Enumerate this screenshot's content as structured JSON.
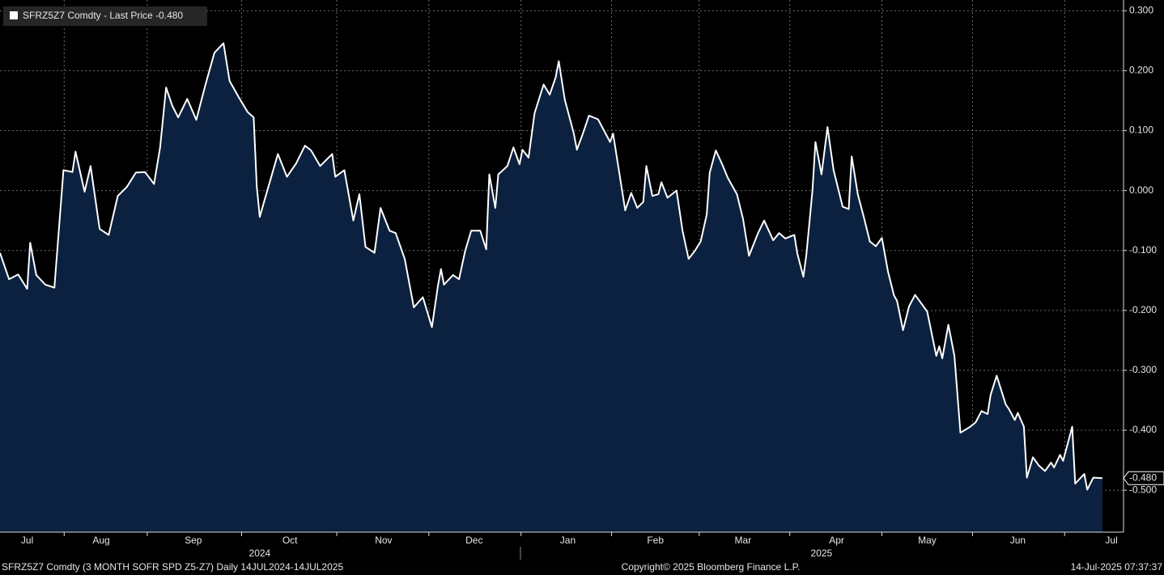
{
  "chart_data": {
    "type": "area",
    "series": [
      {
        "name": "SFRZ5Z7 Comdty - Last Price",
        "color": "#ffffff",
        "fill": "#0b213f",
        "x": [
          0,
          3,
          6,
          9,
          10,
          12,
          15,
          18,
          21,
          24,
          25,
          28,
          30,
          33,
          36,
          39,
          42,
          45,
          48,
          51,
          53,
          55,
          57,
          59,
          62,
          65,
          68,
          71,
          74,
          76,
          79,
          82,
          84,
          85,
          86,
          88,
          92,
          95,
          98,
          101,
          103,
          106,
          110,
          111,
          114,
          117,
          119,
          121,
          124,
          126,
          129,
          131,
          134,
          137,
          140,
          143,
          145,
          146,
          147,
          150,
          152,
          154,
          156,
          159,
          161,
          162,
          164,
          165,
          168,
          170,
          172,
          173,
          175,
          177,
          180,
          182,
          184,
          185,
          187,
          190,
          191,
          193,
          195,
          198,
          202,
          203,
          205,
          207,
          209,
          211,
          213,
          214,
          216,
          218,
          219,
          221,
          224,
          226,
          228,
          230,
          232,
          234,
          235,
          237,
          239,
          241,
          244,
          246,
          248,
          251,
          253,
          256,
          258,
          260,
          263,
          264,
          266,
          267,
          269,
          270,
          272,
          274,
          276,
          279,
          281,
          282,
          284,
          286,
          288,
          290,
          292,
          294,
          296,
          297,
          299,
          301,
          303,
          306,
          307,
          310,
          311,
          312,
          314,
          316,
          318,
          321,
          323,
          325,
          327,
          328,
          330,
          333,
          334,
          336,
          337,
          339,
          340,
          342,
          344,
          346,
          348,
          349,
          351,
          352,
          355,
          356,
          359,
          360,
          362,
          365
        ],
        "values": [
          -0.104,
          -0.148,
          -0.14,
          -0.164,
          -0.087,
          -0.141,
          -0.157,
          -0.162,
          0.034,
          0.031,
          0.065,
          -0.002,
          0.041,
          -0.064,
          -0.074,
          -0.009,
          0.006,
          0.03,
          0.031,
          0.011,
          0.072,
          0.172,
          0.142,
          0.122,
          0.153,
          0.118,
          0.176,
          0.23,
          0.246,
          0.183,
          0.156,
          0.131,
          0.122,
          0.007,
          -0.044,
          -0.009,
          0.061,
          0.023,
          0.045,
          0.075,
          0.067,
          0.041,
          0.061,
          0.023,
          0.034,
          -0.05,
          -0.006,
          -0.094,
          -0.104,
          -0.029,
          -0.067,
          -0.071,
          -0.114,
          -0.195,
          -0.178,
          -0.228,
          -0.159,
          -0.131,
          -0.157,
          -0.141,
          -0.148,
          -0.101,
          -0.067,
          -0.067,
          -0.098,
          0.027,
          -0.029,
          0.027,
          0.041,
          0.072,
          0.044,
          0.068,
          0.055,
          0.129,
          0.177,
          0.16,
          0.189,
          0.216,
          0.152,
          0.095,
          0.068,
          0.095,
          0.125,
          0.119,
          0.081,
          0.095,
          0.031,
          -0.033,
          -0.004,
          -0.029,
          -0.019,
          0.041,
          -0.009,
          -0.006,
          0.014,
          -0.012,
          0.0,
          -0.067,
          -0.114,
          -0.101,
          -0.085,
          -0.04,
          0.03,
          0.067,
          0.045,
          0.021,
          -0.006,
          -0.047,
          -0.109,
          -0.071,
          -0.05,
          -0.083,
          -0.071,
          -0.08,
          -0.074,
          -0.105,
          -0.144,
          -0.107,
          0.0,
          0.081,
          0.027,
          0.106,
          0.034,
          -0.027,
          -0.031,
          0.057,
          -0.006,
          -0.044,
          -0.085,
          -0.093,
          -0.079,
          -0.135,
          -0.175,
          -0.184,
          -0.233,
          -0.193,
          -0.174,
          -0.195,
          -0.202,
          -0.276,
          -0.26,
          -0.28,
          -0.224,
          -0.276,
          -0.404,
          -0.395,
          -0.387,
          -0.368,
          -0.373,
          -0.341,
          -0.309,
          -0.357,
          -0.364,
          -0.383,
          -0.371,
          -0.394,
          -0.479,
          -0.445,
          -0.459,
          -0.468,
          -0.454,
          -0.462,
          -0.441,
          -0.451,
          -0.394,
          -0.489,
          -0.473,
          -0.499,
          -0.479,
          -0.48
        ]
      }
    ],
    "last_value": {
      "value": -0.48,
      "label": "-0.480"
    },
    "xlim": [
      0,
      372
    ],
    "xticks": [
      {
        "value": 9,
        "label": "Jul"
      },
      {
        "value": 33.5,
        "label": "Aug"
      },
      {
        "value": 64,
        "label": "Sep"
      },
      {
        "value": 96,
        "label": "Oct"
      },
      {
        "value": 127,
        "label": "Nov"
      },
      {
        "value": 157,
        "label": "Dec"
      },
      {
        "value": 188,
        "label": "Jan"
      },
      {
        "value": 217,
        "label": "Feb"
      },
      {
        "value": 246,
        "label": "Mar"
      },
      {
        "value": 277,
        "label": "Apr"
      },
      {
        "value": 307,
        "label": "May"
      },
      {
        "value": 337,
        "label": "Jun"
      },
      {
        "value": 368,
        "label": "Jul"
      }
    ],
    "year_ticks": [
      {
        "value": 86,
        "label": "2024"
      },
      {
        "value": 272,
        "label": "2025"
      }
    ],
    "ylim": [
      -0.57,
      0.318
    ],
    "yticks": [
      {
        "value": 0.3,
        "label": "0.300"
      },
      {
        "value": 0.2,
        "label": "0.200"
      },
      {
        "value": 0.1,
        "label": "0.100"
      },
      {
        "value": 0,
        "label": "0.000"
      },
      {
        "value": -0.1,
        "label": "-0.100"
      },
      {
        "value": -0.2,
        "label": "-0.200"
      },
      {
        "value": -0.3,
        "label": "-0.300"
      },
      {
        "value": -0.4,
        "label": "-0.400"
      },
      {
        "value": -0.5,
        "label": "-0.500"
      }
    ],
    "grid": true,
    "footer": {
      "left": "SFRZ5Z7 Comdty (3 MONTH SOFR SPD  Z5-Z7)  Daily 14JUL2024-14JUL2025",
      "center": "Copyright© 2025 Bloomberg Finance L.P.",
      "right": "14-Jul-2025 07:37:37"
    }
  }
}
